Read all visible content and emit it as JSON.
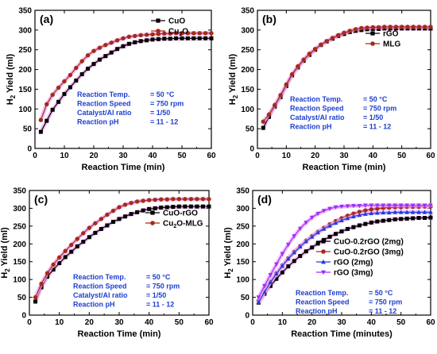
{
  "figure": {
    "colors": {
      "black": "#000000",
      "brown_red": "#a52a1a",
      "blue": "#1a3fe0",
      "violet": "#9b30ff",
      "halo": "#f2a7f2",
      "annotation": "#1e3fd0"
    },
    "chart_data": [
      {
        "type": "line",
        "panel_label": "(a)",
        "xlabel": "Reaction Time (min)",
        "ylabel": "H2 Yield (ml)",
        "xlim": [
          0,
          60
        ],
        "ylim": [
          0,
          350
        ],
        "xticks": [
          0,
          10,
          20,
          30,
          40,
          50,
          60
        ],
        "yticks": [
          0,
          50,
          100,
          150,
          200,
          250,
          300,
          350
        ],
        "grid": false,
        "legend_position": "top-right",
        "series": [
          {
            "name": "CuO",
            "legend_main": "CuO",
            "legend_sub": "",
            "legend_tail": "",
            "marker": "square",
            "color": "#000000",
            "x": [
              2,
              4,
              6,
              8,
              10,
              12,
              14,
              16,
              18,
              20,
              22,
              24,
              26,
              28,
              30,
              32,
              34,
              36,
              38,
              40,
              42,
              44,
              46,
              48,
              50,
              52,
              54,
              56,
              58,
              60
            ],
            "y": [
              42,
              70,
              98,
              118,
              138,
              155,
              172,
              188,
              202,
              214,
              225,
              234,
              243,
              252,
              259,
              265,
              269,
              272,
              274,
              276,
              277,
              278,
              278,
              279,
              279,
              279,
              279,
              279,
              279,
              279
            ]
          },
          {
            "name": "Cu2O",
            "legend_main": "Cu",
            "legend_sub": "2",
            "legend_tail": "O",
            "marker": "circle",
            "color": "#a52a1a",
            "x": [
              2,
              4,
              6,
              8,
              10,
              12,
              14,
              16,
              18,
              20,
              22,
              24,
              26,
              28,
              30,
              32,
              34,
              36,
              38,
              40,
              42,
              44,
              46,
              48,
              50,
              52,
              54,
              56,
              58,
              60
            ],
            "y": [
              72,
              112,
              136,
              154,
              170,
              186,
              204,
              221,
              236,
              247,
              255,
              262,
              268,
              274,
              279,
              283,
              285,
              287,
              288,
              289,
              290,
              291,
              291,
              292,
              292,
              292,
              292,
              292,
              292,
              292
            ]
          }
        ],
        "annotations": [
          "Reaction Temp.  = 50 °C",
          "Reaction Speed  = 750 rpm",
          "Catalyst/Al ratio  = 1/50",
          "Reaction pH       = 11 - 12"
        ]
      },
      {
        "type": "line",
        "panel_label": "(b)",
        "xlabel": "Reaction Time (min)",
        "ylabel": "H2 Yield (ml)",
        "xlim": [
          0,
          60
        ],
        "ylim": [
          0,
          350
        ],
        "xticks": [
          0,
          10,
          20,
          30,
          40,
          50,
          60
        ],
        "yticks": [
          0,
          50,
          100,
          150,
          200,
          250,
          300,
          350
        ],
        "grid": false,
        "legend_position": "top-right",
        "series": [
          {
            "name": "rGO",
            "legend_main": "rGO",
            "legend_sub": "",
            "legend_tail": "",
            "marker": "square",
            "color": "#000000",
            "x": [
              2,
              4,
              6,
              8,
              10,
              12,
              14,
              16,
              18,
              20,
              22,
              24,
              26,
              28,
              30,
              32,
              34,
              36,
              38,
              40,
              42,
              44,
              46,
              48,
              50,
              52,
              54,
              56,
              58,
              60
            ],
            "y": [
              52,
              80,
              106,
              130,
              158,
              185,
              205,
              222,
              237,
              250,
              262,
              271,
              278,
              285,
              290,
              295,
              298,
              300,
              302,
              303,
              303,
              304,
              304,
              304,
              304,
              304,
              304,
              304,
              304,
              304
            ]
          },
          {
            "name": "MLG",
            "legend_main": "MLG",
            "legend_sub": "",
            "legend_tail": "",
            "marker": "circle",
            "color": "#a52a1a",
            "x": [
              2,
              4,
              6,
              8,
              10,
              12,
              14,
              16,
              18,
              20,
              22,
              24,
              26,
              28,
              30,
              32,
              34,
              36,
              38,
              40,
              42,
              44,
              46,
              48,
              50,
              52,
              54,
              56,
              58,
              60
            ],
            "y": [
              68,
              86,
              110,
              135,
              162,
              188,
              208,
              225,
              240,
              252,
              263,
              272,
              280,
              287,
              293,
              298,
              302,
              305,
              306,
              307,
              307,
              308,
              308,
              308,
              308,
              308,
              308,
              308,
              308,
              308
            ]
          }
        ],
        "annotations": [
          "Reaction Temp.  = 50 °C",
          "Reaction Speed  = 750 rpm",
          "Catalyst/Al ratio  = 1/50",
          "Reaction pH       = 11 - 12"
        ]
      },
      {
        "type": "line",
        "panel_label": "(c)",
        "xlabel": "Reaction Time (min)",
        "ylabel": "H2 Yield (ml)",
        "xlim": [
          0,
          60
        ],
        "ylim": [
          0,
          350
        ],
        "xticks": [
          0,
          10,
          20,
          30,
          40,
          50,
          60
        ],
        "yticks": [
          0,
          50,
          100,
          150,
          200,
          250,
          300,
          350
        ],
        "grid": false,
        "legend_position": "right",
        "series": [
          {
            "name": "CuO-rGO",
            "legend_main": "CuO-rGO",
            "legend_sub": "",
            "legend_tail": "",
            "marker": "square",
            "color": "#000000",
            "x": [
              2,
              4,
              6,
              8,
              10,
              12,
              14,
              16,
              18,
              20,
              22,
              24,
              26,
              28,
              30,
              32,
              34,
              36,
              38,
              40,
              42,
              44,
              46,
              48,
              50,
              52,
              54,
              56,
              58,
              60
            ],
            "y": [
              38,
              78,
              108,
              128,
              146,
              163,
              178,
              193,
              206,
              219,
              231,
              242,
              252,
              262,
              270,
              277,
              284,
              289,
              294,
              298,
              300,
              302,
              303,
              304,
              305,
              305,
              305,
              305,
              305,
              305
            ]
          },
          {
            "name": "Cu2O-MLG",
            "legend_main": "Cu",
            "legend_sub": "2",
            "legend_tail": "O-MLG",
            "marker": "circle",
            "color": "#a52a1a",
            "x": [
              2,
              4,
              6,
              8,
              10,
              12,
              14,
              16,
              18,
              20,
              22,
              24,
              26,
              28,
              30,
              32,
              34,
              36,
              38,
              40,
              42,
              44,
              46,
              48,
              50,
              52,
              54,
              56,
              58,
              60
            ],
            "y": [
              50,
              88,
              118,
              142,
              162,
              180,
              197,
              214,
              230,
              245,
              258,
              270,
              282,
              293,
              303,
              310,
              315,
              319,
              321,
              323,
              324,
              325,
              325,
              326,
              326,
              326,
              326,
              326,
              326,
              326
            ]
          }
        ],
        "annotations": [
          "Reaction Temp.  = 50 °C",
          "Reaction Speed  = 750 rpm",
          "Catalyst/Al ratio  = 1/50",
          "Reaction pH       = 11 - 12"
        ]
      },
      {
        "type": "line",
        "panel_label": "(d)",
        "xlabel": "Reaction Time (minutes)",
        "ylabel": "H2 Yield (ml)",
        "xlim": [
          0,
          60
        ],
        "ylim": [
          0,
          350
        ],
        "xticks": [
          0,
          10,
          20,
          30,
          40,
          50,
          60
        ],
        "yticks": [
          0,
          50,
          100,
          150,
          200,
          250,
          300,
          350
        ],
        "grid": false,
        "legend_position": "right",
        "series": [
          {
            "name": "CuO-0.2rGO (2mg)",
            "legend_main": "CuO-0.2rGO (2mg)",
            "legend_sub": "",
            "legend_tail": "",
            "marker": "square",
            "color": "#000000",
            "x": [
              2,
              4,
              6,
              8,
              10,
              12,
              14,
              16,
              18,
              20,
              22,
              24,
              26,
              28,
              30,
              32,
              34,
              36,
              38,
              40,
              42,
              44,
              46,
              48,
              50,
              52,
              54,
              56,
              58,
              60
            ],
            "y": [
              35,
              60,
              82,
              102,
              120,
              137,
              152,
              166,
              179,
              190,
              201,
              211,
              220,
              228,
              235,
              242,
              247,
              252,
              256,
              260,
              263,
              265,
              267,
              269,
              270,
              271,
              272,
              273,
              273,
              274
            ]
          },
          {
            "name": "CuO-0.2rGO (3mg)",
            "legend_main": "CuO-0.2rGO (3mg)",
            "legend_sub": "",
            "legend_tail": "",
            "marker": "circle",
            "color": "#a52a1a",
            "x": [
              2,
              4,
              6,
              8,
              10,
              12,
              14,
              16,
              18,
              20,
              22,
              24,
              26,
              28,
              30,
              32,
              34,
              36,
              38,
              40,
              42,
              44,
              46,
              48,
              50,
              52,
              54,
              56,
              58,
              60
            ],
            "y": [
              40,
              68,
              94,
              118,
              140,
              160,
              178,
              194,
              209,
              222,
              234,
              245,
              255,
              264,
              272,
              279,
              285,
              290,
              294,
              297,
              299,
              301,
              302,
              303,
              303,
              304,
              304,
              304,
              305,
              305
            ]
          },
          {
            "name": "rGO (2mg)",
            "legend_main": "rGO (2mg)",
            "legend_sub": "",
            "legend_tail": "",
            "marker": "triangle-up",
            "color": "#1a3fe0",
            "x": [
              2,
              4,
              6,
              8,
              10,
              12,
              14,
              16,
              18,
              20,
              22,
              24,
              26,
              28,
              30,
              32,
              34,
              36,
              38,
              40,
              42,
              44,
              46,
              48,
              50,
              52,
              54,
              56,
              58,
              60
            ],
            "y": [
              36,
              65,
              92,
              116,
              138,
              158,
              176,
              192,
              207,
              220,
              232,
              242,
              251,
              259,
              266,
              272,
              277,
              281,
              284,
              286,
              287,
              288,
              288,
              289,
              289,
              289,
              289,
              289,
              289,
              289
            ]
          },
          {
            "name": "rGO (3mg)",
            "legend_main": "rGO (3mg)",
            "legend_sub": "",
            "legend_tail": "",
            "marker": "triangle-down",
            "color": "#9b30ff",
            "x": [
              2,
              4,
              6,
              8,
              10,
              12,
              14,
              16,
              18,
              20,
              22,
              24,
              26,
              28,
              30,
              32,
              34,
              36,
              38,
              40,
              42,
              44,
              46,
              48,
              50,
              52,
              54,
              56,
              58,
              60
            ],
            "y": [
              50,
              82,
              113,
              143,
              172,
              198,
              222,
              243,
              260,
              274,
              285,
              293,
              299,
              303,
              305,
              306,
              307,
              307,
              308,
              308,
              308,
              308,
              308,
              308,
              308,
              308,
              308,
              308,
              308,
              308
            ]
          }
        ],
        "annotations": [
          "Reaction Temp.  = 50 °C",
          "Reaction Speed  = 750 rpm",
          "Reaction pH       = 11 - 12"
        ]
      }
    ]
  }
}
